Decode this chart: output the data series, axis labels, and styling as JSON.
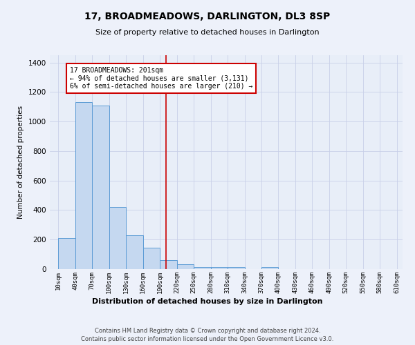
{
  "title": "17, BROADMEADOWS, DARLINGTON, DL3 8SP",
  "subtitle": "Size of property relative to detached houses in Darlington",
  "xlabel": "Distribution of detached houses by size in Darlington",
  "ylabel": "Number of detached properties",
  "footnote1": "Contains HM Land Registry data © Crown copyright and database right 2024.",
  "footnote2": "Contains public sector information licensed under the Open Government Licence v3.0.",
  "bin_values": [
    210,
    1130,
    1110,
    420,
    230,
    145,
    60,
    35,
    15,
    15,
    15,
    0,
    15,
    0,
    0,
    0,
    0,
    0,
    0,
    0
  ],
  "bin_edges": [
    10,
    40,
    70,
    100,
    130,
    160,
    190,
    220,
    250,
    280,
    310,
    340,
    370,
    400,
    430,
    460,
    490,
    520,
    550,
    580,
    610
  ],
  "bar_color": "#c5d8f0",
  "bar_edge_color": "#5b9bd5",
  "vline_x": 201,
  "vline_color": "#cc0000",
  "annotation_text": "17 BROADMEADOWS: 201sqm\n← 94% of detached houses are smaller (3,131)\n6% of semi-detached houses are larger (210) →",
  "annotation_box_color": "#ffffff",
  "annotation_box_edge_color": "#cc0000",
  "ylim": [
    0,
    1450
  ],
  "xlim": [
    -5,
    620
  ],
  "yticks": [
    0,
    200,
    400,
    600,
    800,
    1000,
    1200,
    1400
  ],
  "xtick_labels": [
    "10sqm",
    "40sqm",
    "70sqm",
    "100sqm",
    "130sqm",
    "160sqm",
    "190sqm",
    "220sqm",
    "250sqm",
    "280sqm",
    "310sqm",
    "340sqm",
    "370sqm",
    "400sqm",
    "430sqm",
    "460sqm",
    "490sqm",
    "520sqm",
    "550sqm",
    "580sqm",
    "610sqm"
  ],
  "xtick_positions": [
    10,
    40,
    70,
    100,
    130,
    160,
    190,
    220,
    250,
    280,
    310,
    340,
    370,
    400,
    430,
    460,
    490,
    520,
    550,
    580,
    610
  ],
  "grid_color": "#c8cfe8",
  "bg_color": "#e8eef8",
  "fig_bg_color": "#edf1fa"
}
